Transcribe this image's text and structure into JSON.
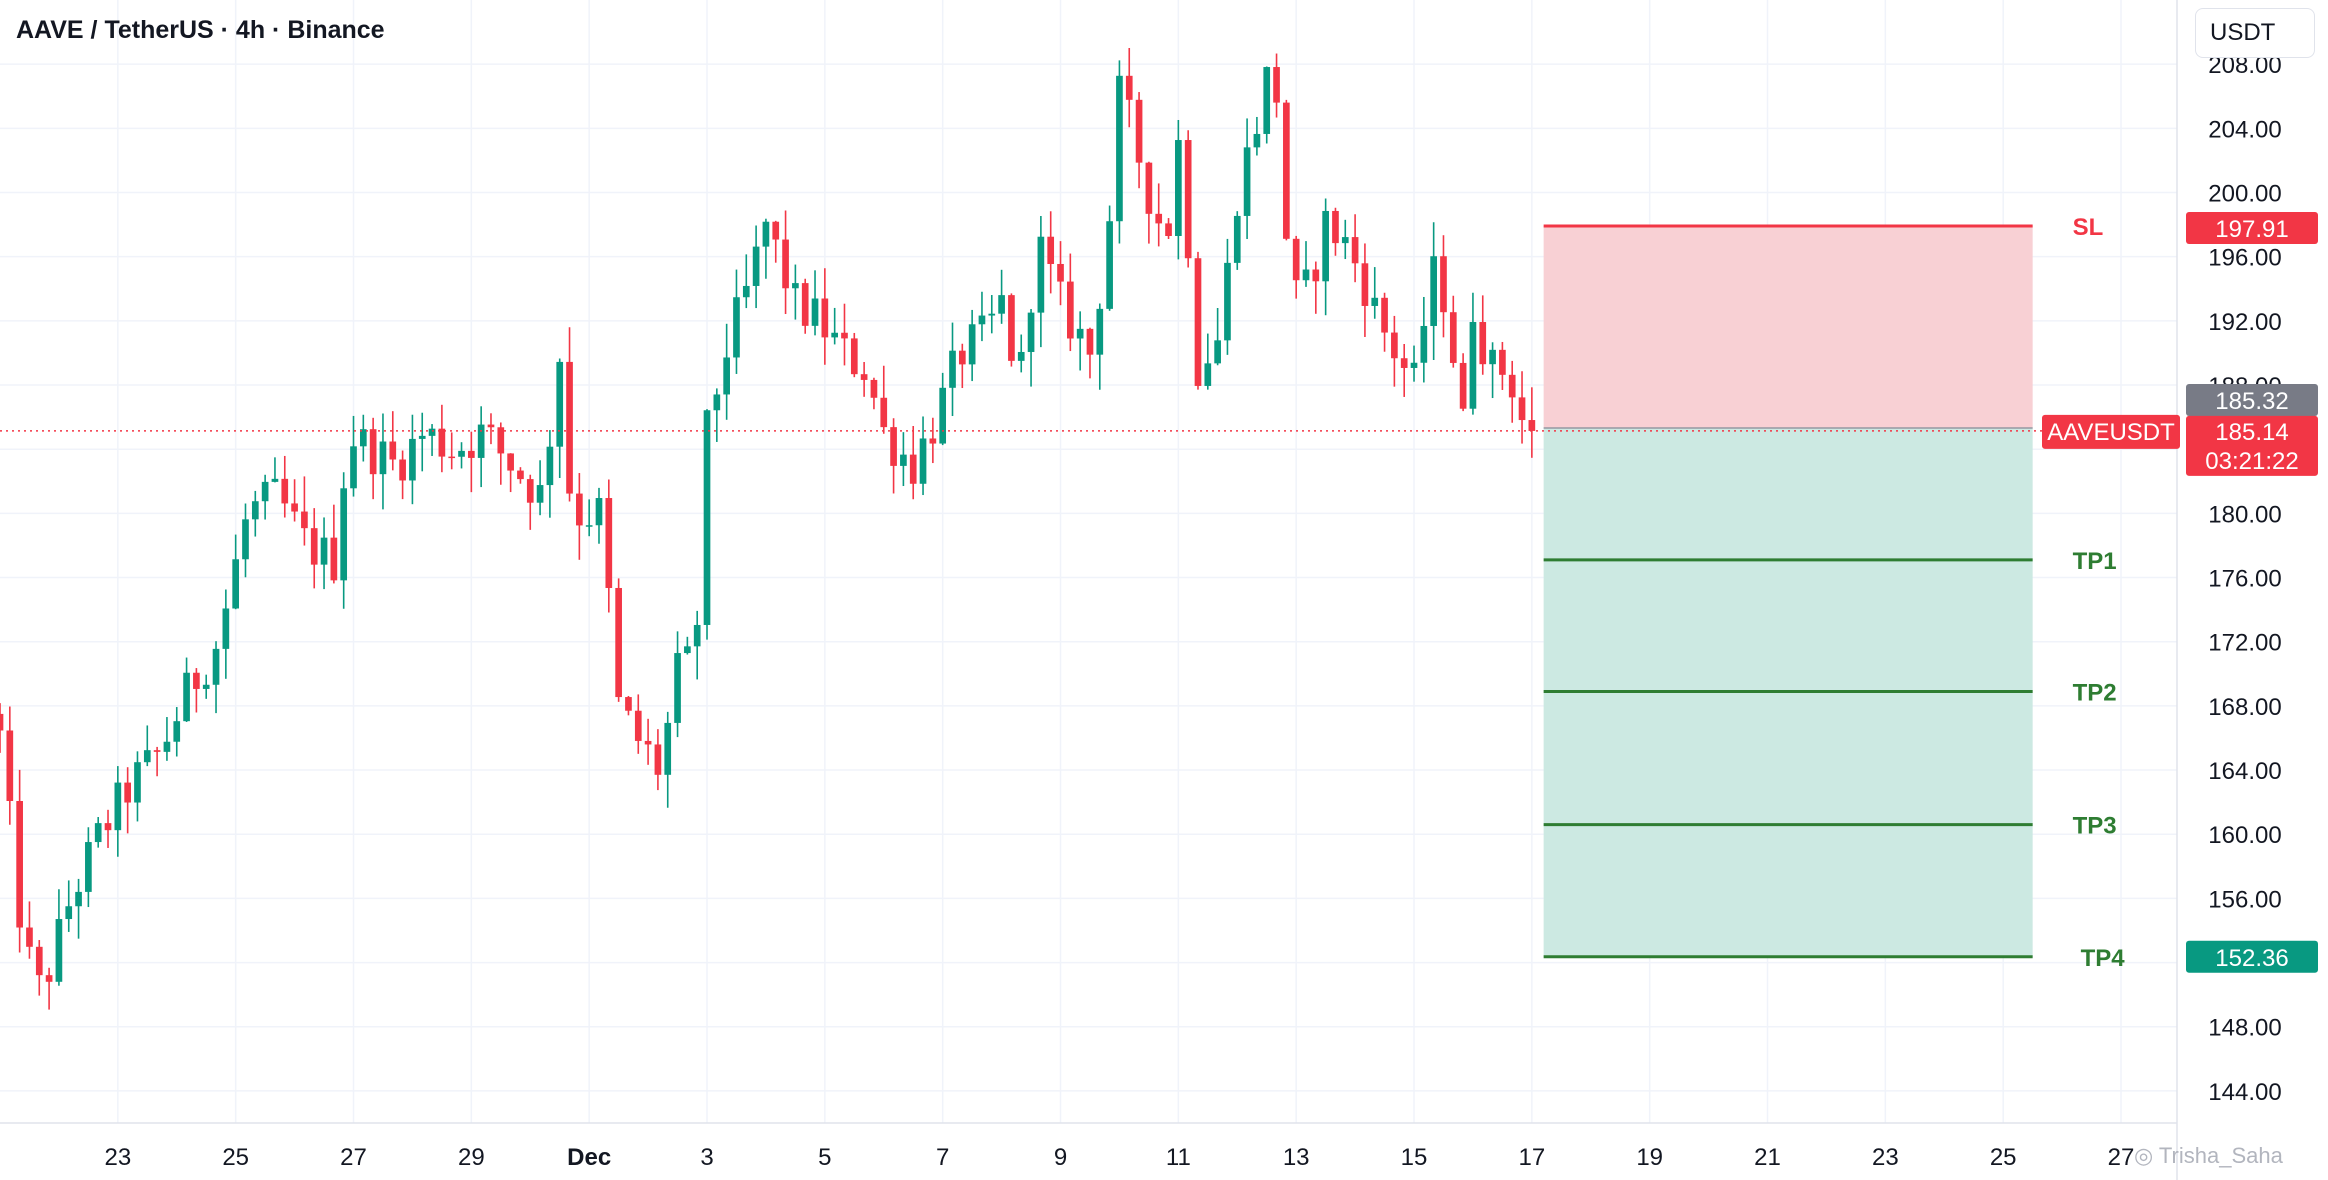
{
  "header": {
    "title": "AAVE / TetherUS · 4h · Binance",
    "currency": "USDT"
  },
  "watermark": "Trisha_Saha",
  "colors": {
    "up": "#089981",
    "down": "#f23645",
    "sl_zone": "#f8d0d4",
    "tp_zone": "#cce9e2",
    "tp_line": "#2e7d32",
    "sl_line": "#f23645",
    "grid": "#f0f3fa",
    "last_price": "#f23645",
    "marker_gray": "#787b86"
  },
  "chart_data": {
    "type": "candlestick",
    "title": "AAVE / TetherUS · 4h · Binance",
    "symbol": "AAVEUSDT",
    "price_scale": {
      "currency": "USDT",
      "range": [
        142,
        212
      ],
      "ticks": [
        "208.00",
        "204.00",
        "200.00",
        "196.00",
        "192.00",
        "188.00",
        "184.00",
        "180.00",
        "176.00",
        "172.00",
        "168.00",
        "164.00",
        "160.00",
        "156.00",
        "152.00",
        "148.00",
        "144.00"
      ]
    },
    "time_scale": {
      "range_days": [
        21.0,
        57.95
      ],
      "ticks": [
        {
          "day": 23,
          "label": "23"
        },
        {
          "day": 25,
          "label": "25"
        },
        {
          "day": 27,
          "label": "27"
        },
        {
          "day": 29,
          "label": "29"
        },
        {
          "day": 31,
          "label": "Dec",
          "bold": true
        },
        {
          "day": 33,
          "label": "3"
        },
        {
          "day": 35,
          "label": "5"
        },
        {
          "day": 37,
          "label": "7"
        },
        {
          "day": 39,
          "label": "9"
        },
        {
          "day": 41,
          "label": "11"
        },
        {
          "day": 43,
          "label": "13"
        },
        {
          "day": 45,
          "label": "15"
        },
        {
          "day": 47,
          "label": "17"
        },
        {
          "day": 49,
          "label": "19"
        },
        {
          "day": 51,
          "label": "21"
        },
        {
          "day": 53,
          "label": "23"
        },
        {
          "day": 55,
          "label": "25"
        },
        {
          "day": 57,
          "label": "27"
        }
      ]
    },
    "ohlc_anchors": [
      [
        21.0,
        166
      ],
      [
        21.4,
        153
      ],
      [
        21.7,
        150
      ],
      [
        22.2,
        156
      ],
      [
        22.7,
        160
      ],
      [
        23.2,
        163
      ],
      [
        23.7,
        165
      ],
      [
        24.2,
        169
      ],
      [
        24.7,
        172
      ],
      [
        25.2,
        180
      ],
      [
        25.7,
        181
      ],
      [
        26.2,
        178
      ],
      [
        26.7,
        177
      ],
      [
        26.9,
        185
      ],
      [
        27.3,
        184
      ],
      [
        27.7,
        183
      ],
      [
        28.2,
        185
      ],
      [
        28.7,
        184
      ],
      [
        29.2,
        185
      ],
      [
        29.7,
        183
      ],
      [
        30.2,
        181
      ],
      [
        30.5,
        190
      ],
      [
        30.7,
        180
      ],
      [
        31.2,
        180
      ],
      [
        31.5,
        168
      ],
      [
        31.8,
        166
      ],
      [
        32.2,
        164
      ],
      [
        32.5,
        170
      ],
      [
        32.8,
        171
      ],
      [
        33.0,
        185
      ],
      [
        33.3,
        190
      ],
      [
        33.7,
        194
      ],
      [
        34.0,
        198
      ],
      [
        34.5,
        193
      ],
      [
        34.9,
        192
      ],
      [
        35.3,
        190
      ],
      [
        35.7,
        189
      ],
      [
        36.0,
        185
      ],
      [
        36.5,
        183
      ],
      [
        36.9,
        186
      ],
      [
        37.3,
        190
      ],
      [
        37.7,
        191
      ],
      [
        38.0,
        193
      ],
      [
        38.3,
        188
      ],
      [
        38.6,
        197
      ],
      [
        39.0,
        193
      ],
      [
        39.5,
        190
      ],
      [
        39.8,
        197
      ],
      [
        40.0,
        206
      ],
      [
        40.2,
        204
      ],
      [
        40.5,
        200
      ],
      [
        40.8,
        197
      ],
      [
        41.0,
        203
      ],
      [
        41.2,
        196
      ],
      [
        41.3,
        189
      ],
      [
        41.7,
        191
      ],
      [
        42.0,
        200
      ],
      [
        42.3,
        204
      ],
      [
        42.5,
        207
      ],
      [
        42.7,
        206
      ],
      [
        42.9,
        193
      ],
      [
        43.2,
        194
      ],
      [
        43.5,
        198
      ],
      [
        43.8,
        197
      ],
      [
        44.1,
        195
      ],
      [
        44.4,
        192
      ],
      [
        44.7,
        190
      ],
      [
        45.0,
        188
      ],
      [
        45.3,
        195
      ],
      [
        45.6,
        193
      ],
      [
        45.8,
        184
      ],
      [
        46.0,
        193
      ],
      [
        46.3,
        189
      ],
      [
        46.6,
        189
      ],
      [
        46.9,
        185
      ],
      [
        47.1,
        185.14
      ]
    ],
    "last_price": {
      "label": "AAVEUSDT",
      "price": "185.14",
      "value": 185.14,
      "countdown": "03:21:22"
    },
    "position": {
      "entry": {
        "price": "185.32",
        "value": 185.32
      },
      "stop_loss": {
        "label": "SL",
        "price": "197.91",
        "value": 197.91
      },
      "take_profits": [
        {
          "label": "TP1",
          "value": 177.1
        },
        {
          "label": "TP2",
          "value": 168.9
        },
        {
          "label": "TP3",
          "value": 160.6
        },
        {
          "label": "TP4",
          "value": 152.36,
          "price": "152.36"
        }
      ],
      "day_range": [
        47.2,
        55.5
      ]
    }
  }
}
